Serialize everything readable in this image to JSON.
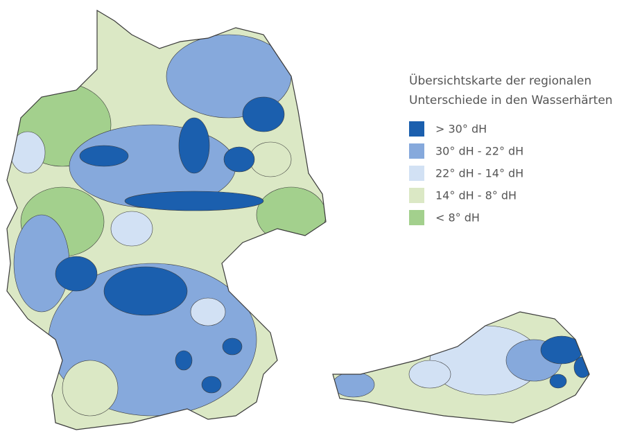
{
  "title": {
    "lines": [
      "Übersichtskarte der regionalen",
      "Unterschiede in den Wasserhärten"
    ]
  },
  "legend": [
    {
      "label": "> 30° dH",
      "color": "#1b5fae"
    },
    {
      "label": "30° dH - 22° dH",
      "color": "#86a9dc"
    },
    {
      "label": "22° dH - 14° dH",
      "color": "#d2e1f4"
    },
    {
      "label": "14° dH - 8° dH",
      "color": "#dbe8c5"
    },
    {
      "label": "< 8° dH",
      "color": "#a3d08d"
    }
  ]
}
